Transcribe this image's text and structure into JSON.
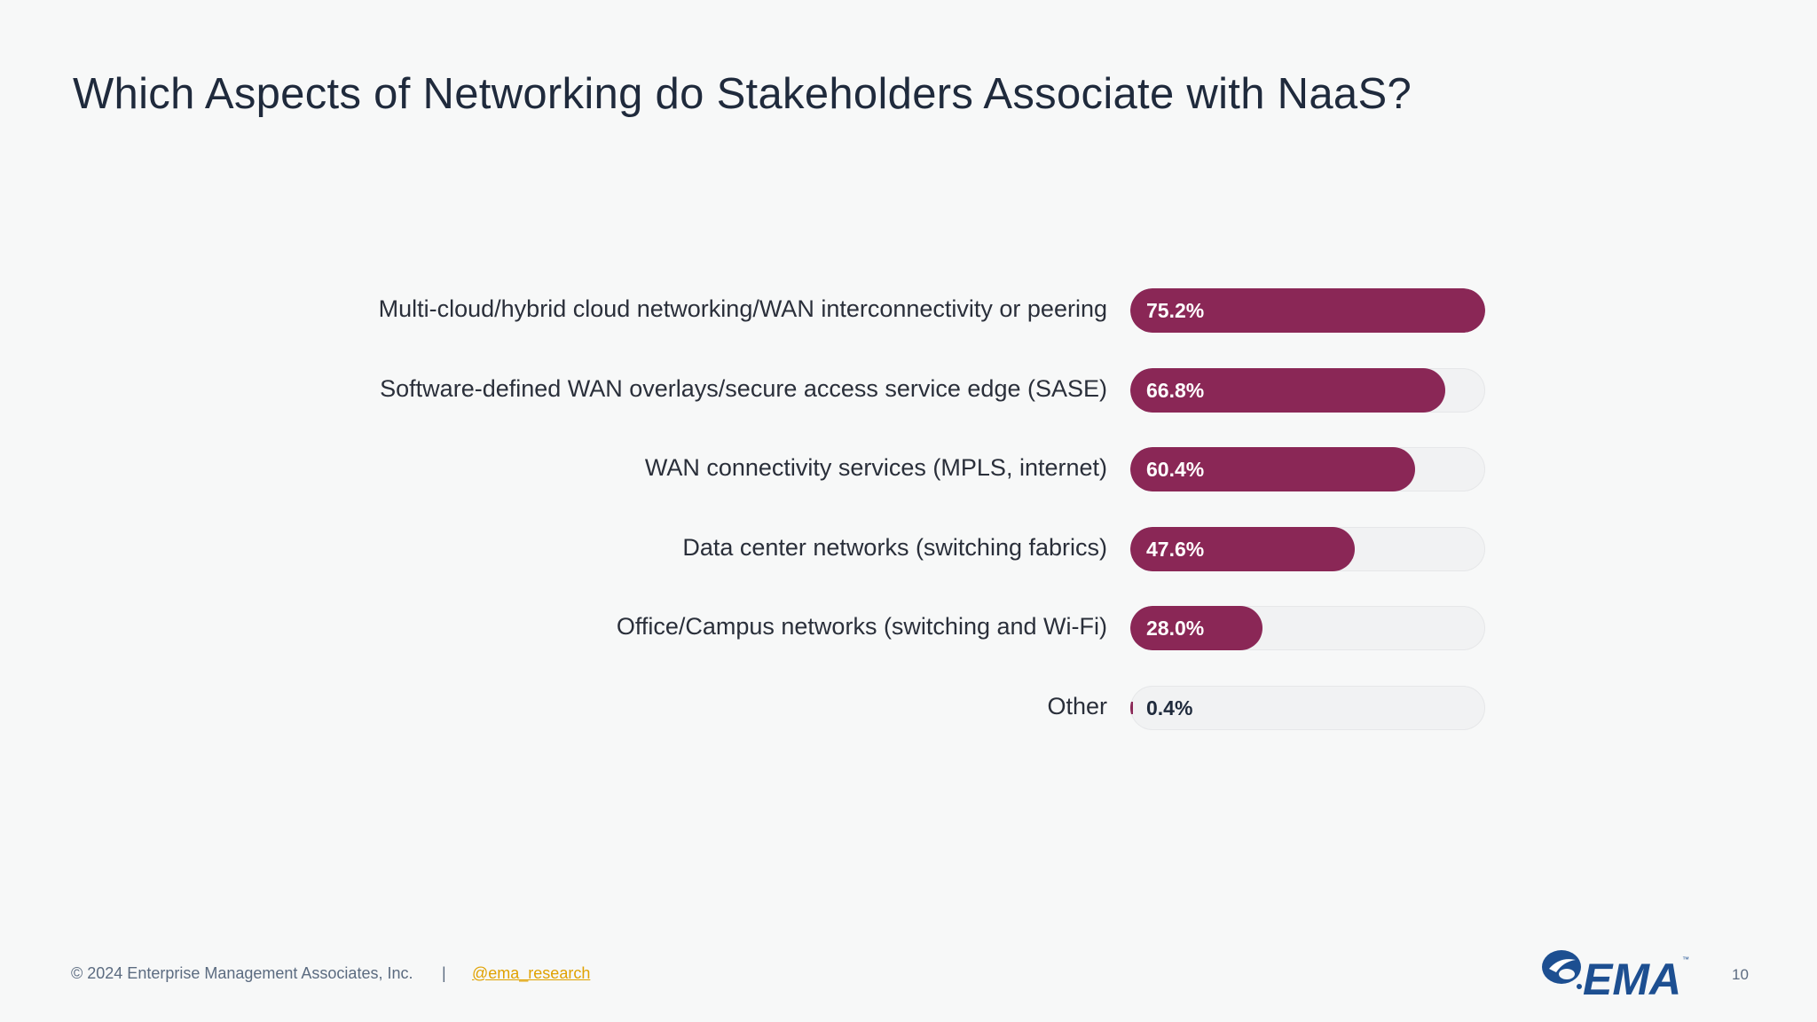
{
  "slide": {
    "title": "Which Aspects of Networking do Stakeholders Associate with NaaS?"
  },
  "chart_data": {
    "type": "bar",
    "orientation": "horizontal",
    "title": "",
    "xlabel": "",
    "ylabel": "",
    "xlim": [
      0,
      100
    ],
    "categories": [
      "Multi-cloud/hybrid cloud networking/WAN interconnectivity or peering",
      "Software-defined WAN overlays/secure access service edge (SASE)",
      "WAN connectivity services (MPLS, internet)",
      "Data center networks (switching fabrics)",
      "Office/Campus networks (switching and Wi-Fi)",
      "Other"
    ],
    "values": [
      75.2,
      66.8,
      60.4,
      47.6,
      28.0,
      0.4
    ],
    "value_labels": [
      "75.2%",
      "66.8%",
      "60.4%",
      "47.6%",
      "28.0%",
      "0.4%"
    ],
    "bar_color": "#8a2756",
    "track_color": "#f1f2f3"
  },
  "footer": {
    "copyright": "© 2024 Enterprise Management Associates, Inc.",
    "separator": "|",
    "handle": "@ema_research",
    "page_number": "10"
  },
  "logo": {
    "text": "EMA",
    "tm": "™",
    "color": "#1d4f91"
  }
}
